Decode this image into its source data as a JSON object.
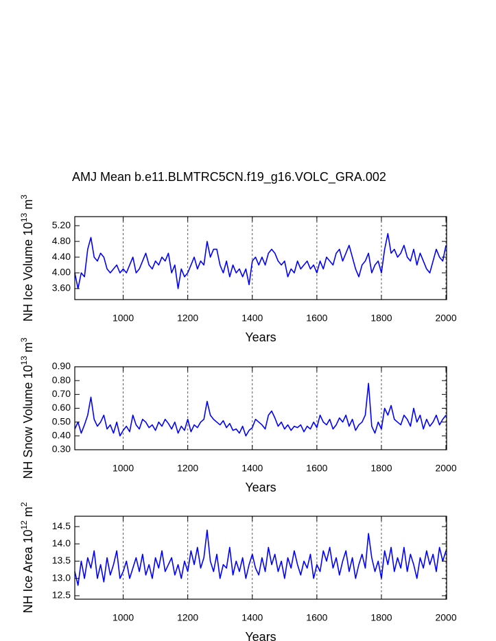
{
  "chart_data": [
    {
      "type": "line",
      "title": "AMJ Mean b.e11.BLMTRC5CN.f19_g16.VOLC_GRA.002",
      "ylabel": {
        "text": "NH Ice Volume 10",
        "exponent": "13",
        "unit": "m",
        "unit_exponent": "3"
      },
      "xlabel": "Years",
      "color": "#0000ff",
      "grid": true,
      "xlim": [
        850,
        2002
      ],
      "xticks": [
        1000,
        1200,
        1400,
        1600,
        1800,
        2000
      ],
      "ylim": [
        3.32,
        5.43
      ],
      "yticks": [
        {
          "value": 3.6,
          "label": "3.60"
        },
        {
          "value": 4.0,
          "label": "4.00"
        },
        {
          "value": 4.4,
          "label": "4.40"
        },
        {
          "value": 4.8,
          "label": "4.80"
        },
        {
          "value": 5.2,
          "label": "5.20"
        }
      ],
      "x": [
        850,
        860,
        870,
        880,
        890,
        900,
        910,
        920,
        930,
        940,
        950,
        960,
        970,
        980,
        990,
        1000,
        1010,
        1020,
        1030,
        1040,
        1050,
        1060,
        1070,
        1080,
        1090,
        1100,
        1110,
        1120,
        1130,
        1140,
        1150,
        1160,
        1170,
        1180,
        1190,
        1200,
        1210,
        1220,
        1230,
        1240,
        1250,
        1260,
        1270,
        1280,
        1290,
        1300,
        1310,
        1320,
        1330,
        1340,
        1350,
        1360,
        1370,
        1380,
        1390,
        1400,
        1410,
        1420,
        1430,
        1440,
        1450,
        1460,
        1470,
        1480,
        1490,
        1500,
        1510,
        1520,
        1530,
        1540,
        1550,
        1560,
        1570,
        1580,
        1590,
        1600,
        1610,
        1620,
        1630,
        1640,
        1650,
        1660,
        1670,
        1680,
        1690,
        1700,
        1710,
        1720,
        1730,
        1740,
        1750,
        1760,
        1770,
        1780,
        1790,
        1800,
        1810,
        1820,
        1830,
        1840,
        1850,
        1860,
        1870,
        1880,
        1890,
        1900,
        1910,
        1920,
        1930,
        1940,
        1950,
        1960,
        1970,
        1980,
        1990,
        2000
      ],
      "values": [
        4.0,
        3.6,
        4.0,
        3.9,
        4.6,
        4.9,
        4.4,
        4.3,
        4.5,
        4.4,
        4.1,
        4.0,
        4.1,
        4.2,
        4.0,
        4.1,
        4.0,
        4.2,
        4.4,
        4.0,
        4.1,
        4.3,
        4.5,
        4.2,
        4.1,
        4.3,
        4.2,
        4.4,
        4.3,
        4.5,
        4.0,
        4.2,
        3.6,
        4.1,
        3.9,
        4.0,
        4.2,
        4.4,
        4.1,
        4.3,
        4.2,
        4.8,
        4.4,
        4.6,
        4.6,
        4.2,
        4.0,
        4.3,
        3.9,
        4.2,
        4.0,
        4.1,
        3.9,
        4.1,
        3.7,
        4.3,
        4.4,
        4.2,
        4.4,
        4.2,
        4.5,
        4.6,
        4.5,
        4.3,
        4.2,
        4.3,
        3.9,
        4.1,
        4.0,
        4.3,
        4.1,
        4.2,
        4.3,
        4.1,
        4.2,
        4.0,
        4.3,
        4.1,
        4.4,
        4.3,
        4.2,
        4.5,
        4.6,
        4.3,
        4.5,
        4.7,
        4.4,
        4.1,
        3.9,
        4.2,
        4.3,
        4.5,
        4.0,
        4.2,
        4.3,
        4.0,
        4.6,
        5.0,
        4.5,
        4.6,
        4.4,
        4.5,
        4.7,
        4.4,
        4.3,
        4.6,
        4.2,
        4.5,
        4.3,
        4.1,
        4.0,
        4.3,
        4.6,
        4.4,
        4.3,
        4.7
      ]
    },
    {
      "type": "line",
      "ylabel": {
        "text": "NH Snow Volume 10",
        "exponent": "13",
        "unit": "m",
        "unit_exponent": "3"
      },
      "xlabel": "Years",
      "color": "#0000ff",
      "grid": true,
      "xlim": [
        850,
        2002
      ],
      "xticks": [
        1000,
        1200,
        1400,
        1600,
        1800,
        2000
      ],
      "ylim": [
        0.3,
        0.9
      ],
      "yticks": [
        {
          "value": 0.3,
          "label": "0.30"
        },
        {
          "value": 0.4,
          "label": "0.40"
        },
        {
          "value": 0.5,
          "label": "0.50"
        },
        {
          "value": 0.6,
          "label": "0.60"
        },
        {
          "value": 0.7,
          "label": "0.70"
        },
        {
          "value": 0.8,
          "label": "0.80"
        },
        {
          "value": 0.9,
          "label": "0.90"
        }
      ],
      "x": [
        850,
        860,
        870,
        880,
        890,
        900,
        910,
        920,
        930,
        940,
        950,
        960,
        970,
        980,
        990,
        1000,
        1010,
        1020,
        1030,
        1040,
        1050,
        1060,
        1070,
        1080,
        1090,
        1100,
        1110,
        1120,
        1130,
        1140,
        1150,
        1160,
        1170,
        1180,
        1190,
        1200,
        1210,
        1220,
        1230,
        1240,
        1250,
        1260,
        1270,
        1280,
        1290,
        1300,
        1310,
        1320,
        1330,
        1340,
        1350,
        1360,
        1370,
        1380,
        1390,
        1400,
        1410,
        1420,
        1430,
        1440,
        1450,
        1460,
        1470,
        1480,
        1490,
        1500,
        1510,
        1520,
        1530,
        1540,
        1550,
        1560,
        1570,
        1580,
        1590,
        1600,
        1610,
        1620,
        1630,
        1640,
        1650,
        1660,
        1670,
        1680,
        1690,
        1700,
        1710,
        1720,
        1730,
        1740,
        1750,
        1760,
        1770,
        1780,
        1790,
        1800,
        1810,
        1820,
        1830,
        1840,
        1850,
        1860,
        1870,
        1880,
        1890,
        1900,
        1910,
        1920,
        1930,
        1940,
        1950,
        1960,
        1970,
        1980,
        1990,
        2000
      ],
      "values": [
        0.45,
        0.5,
        0.42,
        0.48,
        0.55,
        0.68,
        0.52,
        0.47,
        0.5,
        0.55,
        0.45,
        0.48,
        0.42,
        0.5,
        0.4,
        0.44,
        0.47,
        0.43,
        0.55,
        0.48,
        0.45,
        0.52,
        0.5,
        0.46,
        0.48,
        0.44,
        0.5,
        0.47,
        0.52,
        0.49,
        0.45,
        0.5,
        0.42,
        0.47,
        0.44,
        0.52,
        0.43,
        0.48,
        0.46,
        0.5,
        0.52,
        0.65,
        0.55,
        0.52,
        0.5,
        0.48,
        0.51,
        0.46,
        0.49,
        0.44,
        0.45,
        0.42,
        0.47,
        0.4,
        0.44,
        0.46,
        0.52,
        0.5,
        0.48,
        0.45,
        0.55,
        0.58,
        0.53,
        0.47,
        0.5,
        0.45,
        0.48,
        0.44,
        0.47,
        0.46,
        0.48,
        0.43,
        0.47,
        0.45,
        0.5,
        0.46,
        0.55,
        0.5,
        0.48,
        0.52,
        0.45,
        0.48,
        0.53,
        0.5,
        0.55,
        0.47,
        0.52,
        0.44,
        0.48,
        0.5,
        0.55,
        0.78,
        0.47,
        0.42,
        0.5,
        0.45,
        0.6,
        0.55,
        0.62,
        0.52,
        0.5,
        0.48,
        0.55,
        0.52,
        0.47,
        0.6,
        0.5,
        0.55,
        0.45,
        0.52,
        0.47,
        0.5,
        0.55,
        0.48,
        0.52,
        0.55
      ]
    },
    {
      "type": "line",
      "ylabel": {
        "text": "NH Ice Area 10",
        "exponent": "12",
        "unit": "m",
        "unit_exponent": "2"
      },
      "xlabel": "Years",
      "color": "#0000ff",
      "grid": true,
      "xlim": [
        850,
        2002
      ],
      "xticks": [
        1000,
        1200,
        1400,
        1600,
        1800,
        2000
      ],
      "ylim": [
        12.4,
        14.8
      ],
      "yticks": [
        12.5,
        {
          "value": 13.0,
          "label": "13.0"
        },
        13.5,
        {
          "value": 14.0,
          "label": "14.0"
        },
        14.5
      ],
      "x": [
        850,
        860,
        870,
        880,
        890,
        900,
        910,
        920,
        930,
        940,
        950,
        960,
        970,
        980,
        990,
        1000,
        1010,
        1020,
        1030,
        1040,
        1050,
        1060,
        1070,
        1080,
        1090,
        1100,
        1110,
        1120,
        1130,
        1140,
        1150,
        1160,
        1170,
        1180,
        1190,
        1200,
        1210,
        1220,
        1230,
        1240,
        1250,
        1260,
        1270,
        1280,
        1290,
        1300,
        1310,
        1320,
        1330,
        1340,
        1350,
        1360,
        1370,
        1380,
        1390,
        1400,
        1410,
        1420,
        1430,
        1440,
        1450,
        1460,
        1470,
        1480,
        1490,
        1500,
        1510,
        1520,
        1530,
        1540,
        1550,
        1560,
        1570,
        1580,
        1590,
        1600,
        1610,
        1620,
        1630,
        1640,
        1650,
        1660,
        1670,
        1680,
        1690,
        1700,
        1710,
        1720,
        1730,
        1740,
        1750,
        1760,
        1770,
        1780,
        1790,
        1800,
        1810,
        1820,
        1830,
        1840,
        1850,
        1860,
        1870,
        1880,
        1890,
        1900,
        1910,
        1920,
        1930,
        1940,
        1950,
        1960,
        1970,
        1980,
        1990,
        2000
      ],
      "values": [
        13.2,
        12.8,
        13.5,
        13.0,
        13.6,
        13.3,
        13.8,
        13.0,
        13.4,
        12.9,
        13.6,
        13.1,
        13.4,
        13.8,
        13.0,
        13.2,
        13.5,
        13.0,
        13.3,
        13.6,
        13.2,
        13.7,
        13.1,
        13.4,
        13.0,
        13.6,
        13.3,
        13.8,
        13.2,
        13.4,
        13.6,
        13.1,
        13.4,
        13.0,
        13.5,
        13.2,
        13.8,
        13.4,
        13.9,
        13.3,
        13.6,
        14.4,
        13.5,
        13.2,
        13.7,
        13.0,
        13.4,
        13.3,
        13.9,
        13.1,
        13.5,
        13.2,
        13.6,
        13.0,
        13.4,
        13.7,
        13.3,
        13.1,
        13.6,
        13.2,
        13.9,
        13.4,
        13.7,
        13.2,
        13.5,
        13.0,
        13.6,
        13.3,
        13.8,
        13.4,
        13.1,
        13.5,
        13.3,
        13.7,
        13.0,
        13.4,
        13.2,
        13.8,
        13.5,
        13.9,
        13.3,
        13.6,
        13.1,
        13.5,
        13.8,
        13.2,
        13.6,
        13.0,
        13.4,
        13.7,
        13.3,
        14.3,
        13.6,
        13.2,
        13.5,
        13.0,
        13.8,
        13.4,
        13.9,
        13.2,
        13.6,
        13.3,
        13.9,
        13.2,
        13.7,
        13.4,
        13.0,
        13.6,
        13.3,
        13.8,
        13.4,
        13.7,
        13.2,
        13.9,
        13.5,
        13.8
      ]
    }
  ]
}
